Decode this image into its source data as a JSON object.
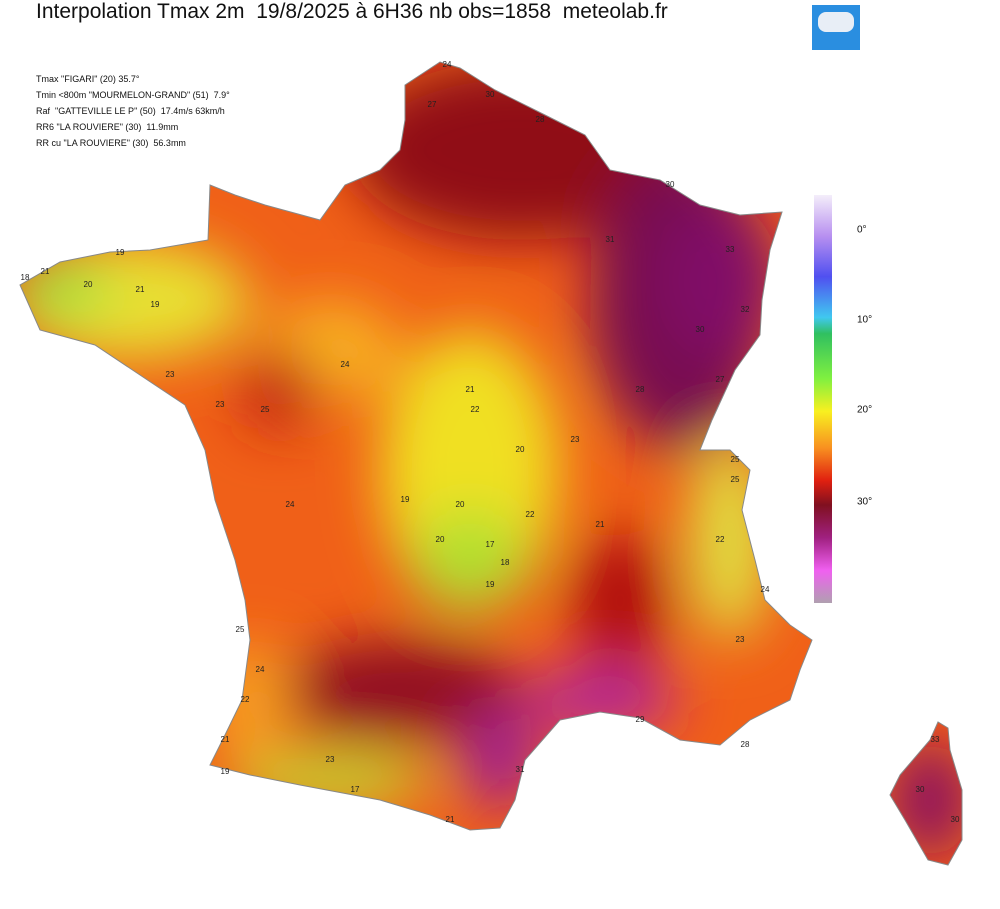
{
  "header": {
    "title": "Interpolation Tmax 2m  19/8/2025 à 6H36 nb obs=1858  meteolab.fr"
  },
  "info_lines": [
    "Tmax \"FIGARI\" (20) 35.7°",
    "Tmin <800m \"MOURMELON-GRAND\" (51)  7.9°",
    "Raf  \"GATTEVILLE LE P\" (50)  17.4m/s 63km/h",
    "RR6 \"LA ROUVIERE\" (30)  11.9mm",
    "RR cu \"LA ROUVIERE\" (30)  56.3mm"
  ],
  "colorbar": {
    "labels": [
      "0°",
      "10°",
      "20°",
      "30°"
    ]
  },
  "stations": [
    "24",
    "27",
    "30",
    "28",
    "30",
    "31",
    "33",
    "32",
    "30",
    "28",
    "27",
    "25",
    "22",
    "24",
    "23",
    "29",
    "28",
    "31",
    "21",
    "23",
    "17",
    "19",
    "21",
    "22",
    "24",
    "25",
    "24",
    "23",
    "25",
    "21",
    "19",
    "18",
    "21",
    "19",
    "20",
    "23",
    "24",
    "21",
    "22",
    "20",
    "19",
    "20",
    "17",
    "18",
    "19",
    "22",
    "21",
    "30",
    "33",
    "30",
    "20",
    "23",
    "25"
  ]
}
